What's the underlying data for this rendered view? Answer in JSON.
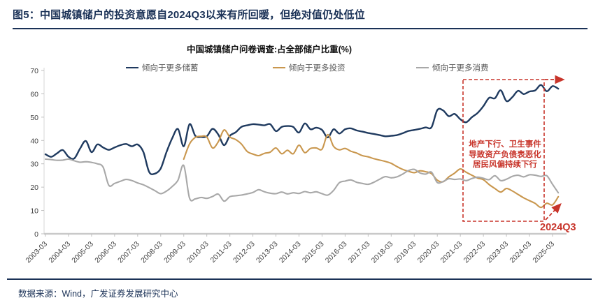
{
  "figure": {
    "title": "图5：中国城镇储户的投资意愿自2024Q3以来有所回暖，但绝对值仍处低位",
    "source": "数据来源：Wind，广发证券发展研究中心"
  },
  "chart_data": {
    "type": "line",
    "title": "中国城镇储户问卷调查:占全部储户比重(%)",
    "ylim": [
      0,
      70
    ],
    "y_ticks": [
      0,
      10,
      20,
      30,
      40,
      50,
      60,
      70
    ],
    "grid": "off",
    "legend_position": "top",
    "x_tick_labels": [
      "2003-03",
      "2004-03",
      "2005-03",
      "2006-03",
      "2007-03",
      "2008-03",
      "2009-03",
      "2010-03",
      "2011-03",
      "2012-03",
      "2013-03",
      "2014-03",
      "2015-03",
      "2016-03",
      "2017-03",
      "2018-03",
      "2019-03",
      "2020-03",
      "2021-03",
      "2022-03",
      "2023-03",
      "2024-03",
      "2025-03"
    ],
    "x_frequency": "quarterly",
    "series": [
      {
        "name": "倾向于更多储蓄",
        "color": "#1f3a5f",
        "values": [
          34.1,
          33.0,
          34.5,
          35.9,
          33.0,
          32.3,
          36.5,
          39.8,
          35.0,
          38.3,
          37.0,
          36.0,
          37.0,
          38.0,
          38.5,
          37.5,
          38.3,
          35.0,
          26.5,
          25.8,
          28.0,
          35.0,
          41.0,
          44.9,
          37.5,
          47.0,
          42.0,
          41.5,
          41.8,
          45.0,
          42.5,
          38.0,
          42.0,
          43.5,
          45.8,
          46.5,
          47.0,
          46.8,
          46.5,
          47.0,
          44.0,
          45.8,
          46.2,
          45.8,
          43.4,
          47.3,
          44.8,
          45.5,
          44.5,
          41.3,
          44.8,
          43.0,
          44.8,
          45.2,
          44.3,
          43.8,
          43.2,
          42.8,
          42.3,
          41.8,
          42.0,
          42.3,
          43.1,
          44.1,
          44.5,
          45.0,
          45.6,
          45.7,
          53.0,
          52.9,
          50.4,
          51.4,
          49.1,
          47.8,
          50.0,
          51.8,
          54.7,
          58.3,
          58.1,
          61.5,
          56.9,
          58.5,
          61.3,
          59.9,
          61.0,
          61.5,
          63.8,
          61.1,
          63.3,
          62.2
        ]
      },
      {
        "name": "倾向于更多投资",
        "color": "#c9974e",
        "values": [
          null,
          null,
          null,
          null,
          null,
          null,
          null,
          null,
          null,
          null,
          null,
          null,
          null,
          null,
          null,
          null,
          null,
          null,
          null,
          null,
          null,
          null,
          null,
          null,
          32.0,
          38.5,
          41.3,
          41.8,
          41.5,
          36.8,
          39.5,
          44.5,
          41.5,
          40.4,
          38.5,
          35.3,
          34.2,
          33.5,
          34.5,
          35.0,
          36.8,
          34.3,
          35.8,
          34.3,
          38.0,
          34.8,
          36.6,
          36.8,
          36.3,
          42.5,
          37.5,
          36.0,
          36.6,
          35.4,
          34.6,
          33.5,
          33.0,
          32.2,
          31.6,
          31.0,
          30.2,
          28.8,
          27.6,
          26.8,
          26.2,
          27.0,
          26.6,
          25.8,
          23.0,
          22.3,
          24.4,
          26.0,
          27.8,
          26.4,
          25.1,
          23.9,
          23.2,
          21.1,
          19.4,
          17.9,
          19.4,
          18.4,
          16.9,
          15.4,
          14.2,
          13.0,
          11.3,
          13.1,
          12.4,
          15.9
        ]
      },
      {
        "name": "倾向于更多消费",
        "color": "#a8a8a8",
        "values": [
          32.0,
          31.8,
          31.5,
          31.6,
          32.0,
          31.3,
          30.7,
          30.9,
          30.6,
          30.0,
          28.6,
          20.8,
          21.6,
          22.5,
          23.3,
          22.8,
          21.8,
          21.0,
          19.8,
          18.5,
          17.2,
          18.3,
          20.3,
          23.0,
          29.3,
          15.3,
          15.0,
          15.6,
          15.2,
          16.0,
          17.0,
          14.0,
          15.9,
          16.3,
          16.6,
          17.1,
          17.7,
          18.9,
          18.0,
          17.4,
          17.2,
          17.9,
          17.1,
          17.6,
          17.3,
          18.1,
          17.6,
          18.0,
          17.2,
          16.6,
          18.6,
          21.9,
          22.6,
          23.1,
          22.1,
          21.6,
          21.2,
          22.1,
          23.4,
          24.5,
          24.0,
          24.4,
          25.6,
          27.1,
          27.6,
          26.1,
          25.6,
          26.4,
          22.0,
          22.4,
          23.6,
          23.3,
          23.5,
          22.8,
          23.7,
          24.3,
          23.8,
          23.2,
          24.9,
          22.8,
          23.4,
          24.6,
          25.1,
          24.4,
          25.3,
          25.1,
          24.6,
          24.9,
          21.2,
          17.6
        ]
      }
    ],
    "annotation": {
      "color": "#c8352b",
      "box_x_range": [
        "2021-03",
        "2024-09"
      ],
      "lines": [
        "地产下行、卫生事件",
        "导致资产负债表恶化",
        "居民风偏持续下行"
      ],
      "label": "2024Q3"
    }
  }
}
